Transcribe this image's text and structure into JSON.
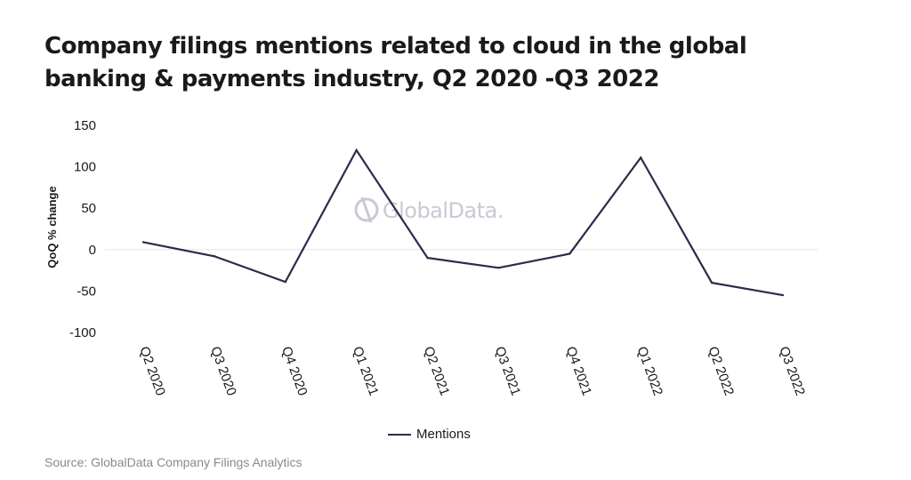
{
  "title_lines": [
    "Company filings mentions related to cloud in the global",
    "banking & payments industry, Q2 2020 -Q3 2022"
  ],
  "watermark": "GlobalData.",
  "source": "Source: GlobalData Company Filings Analytics",
  "colors": {
    "line": "#2d2a4a",
    "zero_line": "#e3e3e3"
  },
  "chart_data": {
    "type": "line",
    "title": "Company filings mentions related to cloud in the global banking & payments industry, Q2 2020 -Q3 2022",
    "xlabel": "",
    "ylabel": "QoQ % change",
    "ylim": [
      -100,
      150
    ],
    "yticks": [
      150,
      100,
      50,
      0,
      -50,
      -100
    ],
    "ytick_labels": [
      "150",
      "100",
      "50",
      "0",
      "-50",
      "-100"
    ],
    "categories": [
      "Q2 2020",
      "Q3 2020",
      "Q4 2020",
      "Q1 2021",
      "Q2 2021",
      "Q3 2021",
      "Q4 2021",
      "Q1 2022",
      "Q2 2022",
      "Q3 2022"
    ],
    "series": [
      {
        "name": "Mentions",
        "values": [
          9,
          -8,
          -39,
          120,
          -10,
          -22,
          -5,
          111,
          -40,
          -55
        ]
      }
    ],
    "legend": "bottom-center",
    "grid": false,
    "zero_line": true
  }
}
